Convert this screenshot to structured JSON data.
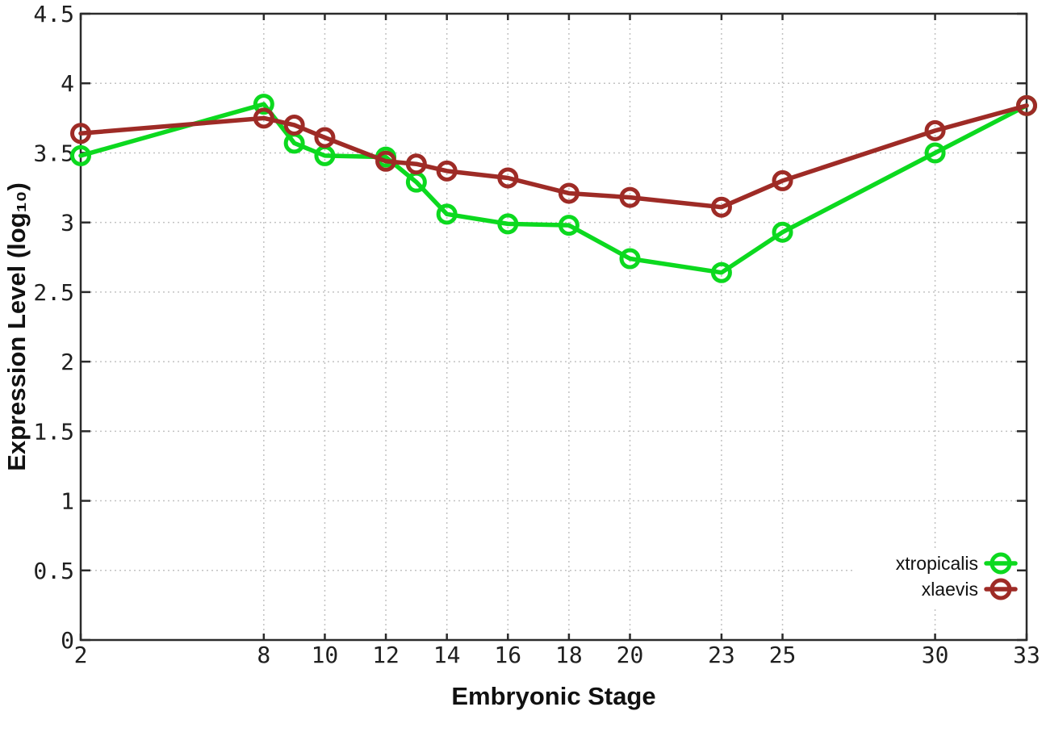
{
  "chart_data": {
    "type": "line",
    "title": "",
    "xlabel": "Embryonic Stage",
    "ylabel": "Expression Level (log₁₀)",
    "xlim": [
      2,
      33
    ],
    "ylim": [
      0,
      4.5
    ],
    "x_tick_values": [
      2,
      8,
      10,
      12,
      14,
      16,
      18,
      20,
      23,
      25,
      30,
      33
    ],
    "x_tick_labels": [
      "2",
      "8",
      "10",
      "12",
      "14",
      "16",
      "18",
      "20",
      "23",
      "25",
      "30",
      "33"
    ],
    "y_tick_values": [
      0,
      0.5,
      1,
      1.5,
      2,
      2.5,
      3,
      3.5,
      4,
      4.5
    ],
    "y_tick_labels": [
      "0",
      "0.5",
      "1",
      "1.5",
      "2",
      "2.5",
      "3",
      "3.5",
      "4",
      "4.5"
    ],
    "grid": true,
    "legend_position": "bottom-right",
    "x": [
      2,
      8,
      9,
      10,
      12,
      13,
      14,
      16,
      18,
      20,
      23,
      25,
      30,
      33
    ],
    "series": [
      {
        "name": "xtropicalis",
        "color": "#0cd91f",
        "values": [
          3.48,
          3.85,
          3.57,
          3.48,
          3.47,
          3.29,
          3.06,
          2.99,
          2.98,
          2.74,
          2.64,
          2.93,
          3.5,
          3.84
        ]
      },
      {
        "name": "xlaevis",
        "color": "#9e2b26",
        "values": [
          3.64,
          3.75,
          3.7,
          3.61,
          3.44,
          3.42,
          3.37,
          3.32,
          3.21,
          3.18,
          3.11,
          3.3,
          3.66,
          3.84
        ]
      }
    ],
    "style": {
      "background": "#ffffff",
      "axis_color": "#2b2b2b",
      "grid_color": "#c2c2c2",
      "tick_label_color": "#1f1f1f",
      "legend_text_color": "#111111"
    }
  }
}
